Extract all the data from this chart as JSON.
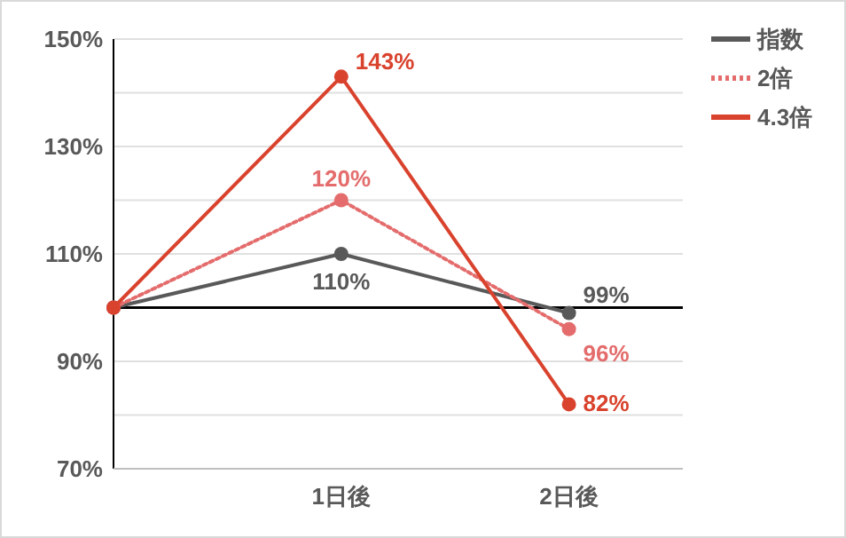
{
  "chart_data": {
    "type": "line",
    "x": [
      0,
      1,
      2
    ],
    "xlim": [
      0,
      2.5
    ],
    "xticks": [
      {
        "value": 1,
        "label": "1日後"
      },
      {
        "value": 2,
        "label": "2日後"
      }
    ],
    "ylim": [
      70,
      150
    ],
    "yticks": [
      {
        "value": 70,
        "label": "70%"
      },
      {
        "value": 80,
        "label": null
      },
      {
        "value": 90,
        "label": "90%"
      },
      {
        "value": 100,
        "label": null
      },
      {
        "value": 110,
        "label": "110%"
      },
      {
        "value": 120,
        "label": null
      },
      {
        "value": 130,
        "label": "130%"
      },
      {
        "value": 140,
        "label": null
      },
      {
        "value": 150,
        "label": "150%"
      }
    ],
    "grid": "y",
    "legend": "top right",
    "marker": "circle",
    "ref_lines": [
      {
        "axis": "y",
        "value": 100,
        "color": "#000000"
      }
    ],
    "series": [
      {
        "name": "指数",
        "color": "#595959",
        "values": [
          100,
          110,
          99
        ],
        "line_style": "solid",
        "value_labels": [
          null,
          "110%",
          "99%"
        ]
      },
      {
        "name": "2倍",
        "color": "#e46c6c",
        "values": [
          100,
          120,
          96
        ],
        "line_style": "dotted",
        "value_labels": [
          null,
          "120%",
          "96%"
        ]
      },
      {
        "name": "4.3倍",
        "color": "#d9432e",
        "values": [
          100,
          143,
          82
        ],
        "line_style": "solid",
        "value_labels": [
          null,
          "143%",
          "82%"
        ]
      }
    ]
  }
}
